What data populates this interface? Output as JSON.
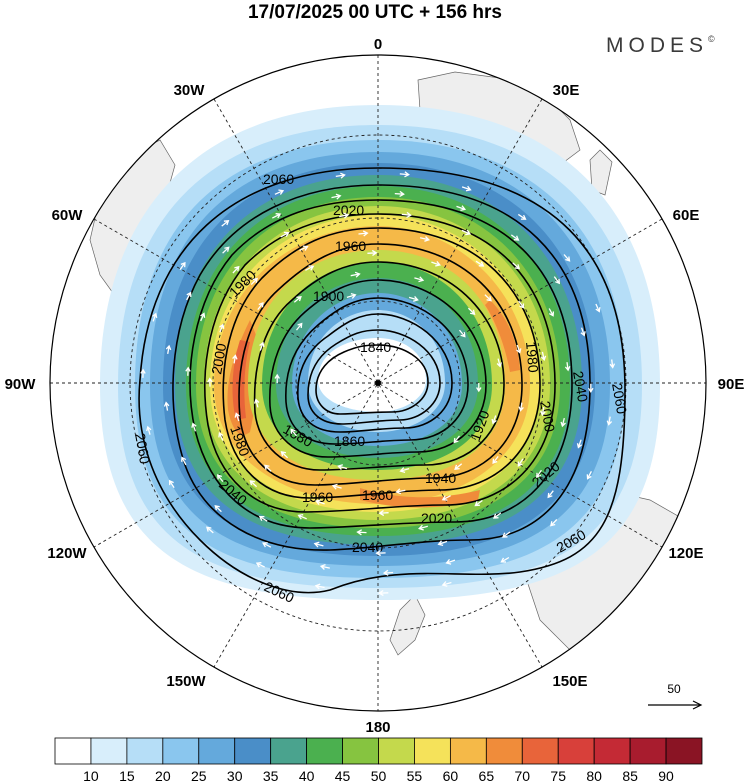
{
  "header": {
    "title": "17/07/2025  00 UTC  + 156 hrs",
    "brand": "MODES",
    "brand_mark": "©"
  },
  "map": {
    "projection": "south-polar-stereographic",
    "longitude_labels": [
      {
        "text": "0",
        "lon": 0
      },
      {
        "text": "30E",
        "lon": 30
      },
      {
        "text": "60E",
        "lon": 60
      },
      {
        "text": "90E",
        "lon": 90
      },
      {
        "text": "120E",
        "lon": 120
      },
      {
        "text": "150E",
        "lon": 150
      },
      {
        "text": "180",
        "lon": 180
      },
      {
        "text": "150W",
        "lon": -150
      },
      {
        "text": "120W",
        "lon": -120
      },
      {
        "text": "90W",
        "lon": -90
      },
      {
        "text": "60W",
        "lon": -60
      },
      {
        "text": "30W",
        "lon": -30
      }
    ],
    "wind_speed_colors": [
      "#ffffff",
      "#d8eefb",
      "#b6def7",
      "#8ac6ee",
      "#64a9dc",
      "#4a8ec8",
      "#4aa38e",
      "#4bb04f",
      "#86c440",
      "#c4d94c",
      "#f5e25a",
      "#f5b948",
      "#f08c3a",
      "#e8643a",
      "#d8403a",
      "#c42a35",
      "#a81c2e",
      "#8a1424"
    ],
    "contours": [
      {
        "label": "1840"
      },
      {
        "label": "1860"
      },
      {
        "label": "1880"
      },
      {
        "label": "1900"
      },
      {
        "label": "1920"
      },
      {
        "label": "1940"
      },
      {
        "label": "1960"
      },
      {
        "label": "1980"
      },
      {
        "label": "2000"
      },
      {
        "label": "2020"
      },
      {
        "label": "2040"
      },
      {
        "label": "2060"
      }
    ],
    "wind_reference": {
      "label": "50",
      "value": 50
    }
  },
  "colorbar": {
    "labels": [
      "10",
      "15",
      "20",
      "25",
      "30",
      "35",
      "40",
      "45",
      "50",
      "55",
      "60",
      "65",
      "70",
      "75",
      "80",
      "85",
      "90"
    ],
    "colors": [
      "#ffffff",
      "#d8eefb",
      "#b6def7",
      "#8ac6ee",
      "#64a9dc",
      "#4a8ec8",
      "#4aa38e",
      "#4bb04f",
      "#86c440",
      "#c4d94c",
      "#f5e25a",
      "#f5b948",
      "#f08c3a",
      "#e8643a",
      "#d8403a",
      "#c42a35",
      "#a81c2e",
      "#8a1424"
    ]
  }
}
